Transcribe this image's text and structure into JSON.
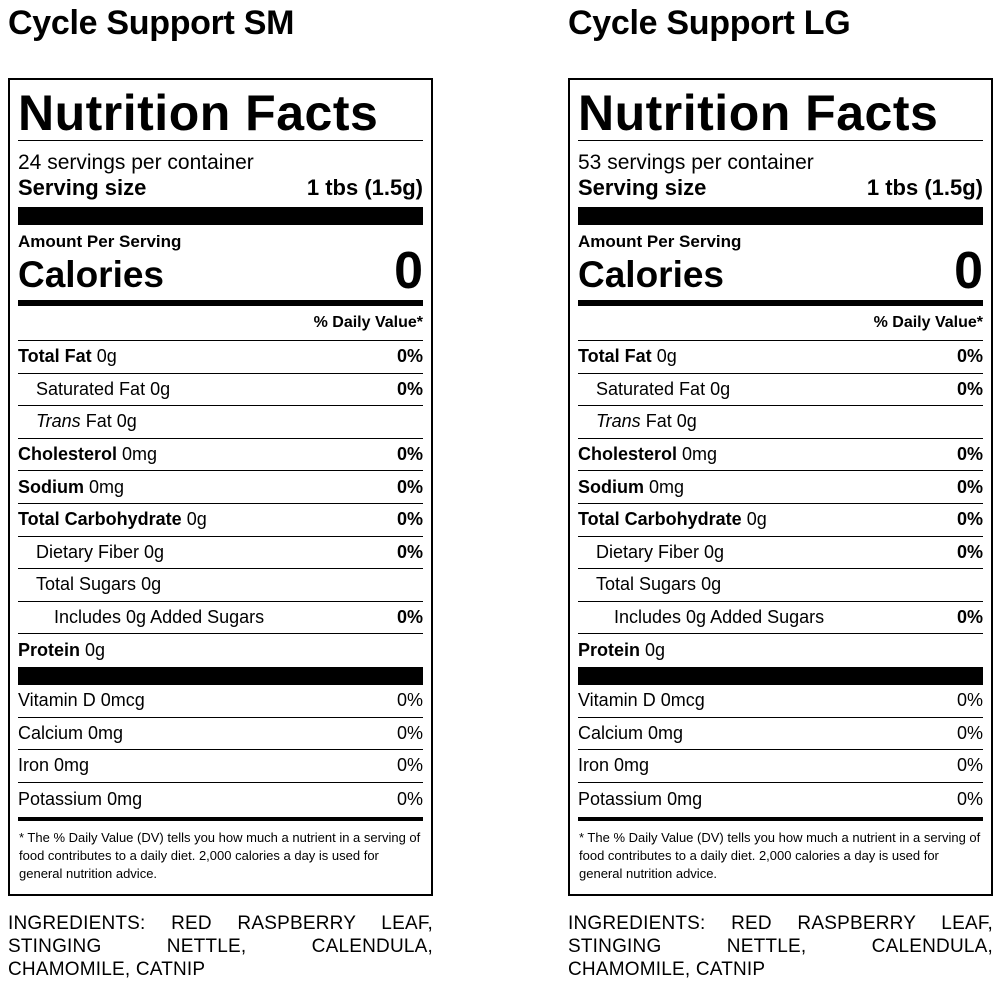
{
  "labels": [
    {
      "product": "Cycle Support SM",
      "heading": "Nutrition Facts",
      "servings": "24 servings per container",
      "serving_size_label": "Serving size",
      "serving_size": "1 tbs (1.5g)",
      "amount_per_serving": "Amount Per Serving",
      "calories_label": "Calories",
      "calories": "0",
      "dv_header": "% Daily Value*",
      "nutrients": [
        {
          "name": "Total Fat",
          "amount": "0g",
          "dv": "0%"
        },
        {
          "name": "Saturated Fat",
          "amount": "0g",
          "dv": "0%"
        },
        {
          "name": "Trans",
          "amount": "Fat 0g"
        },
        {
          "name": "Cholesterol",
          "amount": "0mg",
          "dv": "0%"
        },
        {
          "name": "Sodium",
          "amount": "0mg",
          "dv": "0%"
        },
        {
          "name": "Total Carbohydrate",
          "amount": "0g",
          "dv": "0%"
        },
        {
          "name": "Dietary Fiber",
          "amount": "0g",
          "dv": "0%"
        },
        {
          "name": "Total Sugars",
          "amount": "0g"
        },
        {
          "name": "Includes 0g Added Sugars",
          "dv": "0%"
        },
        {
          "name": "Protein",
          "amount": "0g"
        }
      ],
      "vitamins": [
        {
          "name": "Vitamin D",
          "amount": "0mcg",
          "dv": "0%"
        },
        {
          "name": "Calcium",
          "amount": "0mg",
          "dv": "0%"
        },
        {
          "name": "Iron",
          "amount": "0mg",
          "dv": "0%"
        },
        {
          "name": "Potassium",
          "amount": "0mg",
          "dv": "0%"
        }
      ],
      "footnote": "* The % Daily Value (DV) tells you how much a nutrient in a serving of food contributes to a daily diet. 2,000 calories a day is used for general nutrition advice.",
      "ingredients": "INGREDIENTS: RED RASPBERRY LEAF, STINGING NETTLE, CALENDULA, CHAMOMILE, CATNIP"
    },
    {
      "product": "Cycle Support LG",
      "heading": "Nutrition Facts",
      "servings": "53 servings per container",
      "serving_size_label": "Serving size",
      "serving_size": "1 tbs (1.5g)",
      "amount_per_serving": "Amount Per Serving",
      "calories_label": "Calories",
      "calories": "0",
      "dv_header": "% Daily Value*",
      "nutrients": [
        {
          "name": "Total Fat",
          "amount": "0g",
          "dv": "0%"
        },
        {
          "name": "Saturated Fat",
          "amount": "0g",
          "dv": "0%"
        },
        {
          "name": "Trans",
          "amount": "Fat 0g"
        },
        {
          "name": "Cholesterol",
          "amount": "0mg",
          "dv": "0%"
        },
        {
          "name": "Sodium",
          "amount": "0mg",
          "dv": "0%"
        },
        {
          "name": "Total Carbohydrate",
          "amount": "0g",
          "dv": "0%"
        },
        {
          "name": "Dietary Fiber",
          "amount": "0g",
          "dv": "0%"
        },
        {
          "name": "Total Sugars",
          "amount": "0g"
        },
        {
          "name": "Includes 0g Added Sugars",
          "dv": "0%"
        },
        {
          "name": "Protein",
          "amount": "0g"
        }
      ],
      "vitamins": [
        {
          "name": "Vitamin D",
          "amount": "0mcg",
          "dv": "0%"
        },
        {
          "name": "Calcium",
          "amount": "0mg",
          "dv": "0%"
        },
        {
          "name": "Iron",
          "amount": "0mg",
          "dv": "0%"
        },
        {
          "name": "Potassium",
          "amount": "0mg",
          "dv": "0%"
        }
      ],
      "footnote": "* The % Daily Value (DV) tells you how much a nutrient in a serving of food contributes to a daily diet. 2,000 calories a day is used for general nutrition advice.",
      "ingredients": "INGREDIENTS: RED RASPBERRY LEAF, STINGING NETTLE, CALENDULA, CHAMOMILE, CATNIP"
    }
  ]
}
